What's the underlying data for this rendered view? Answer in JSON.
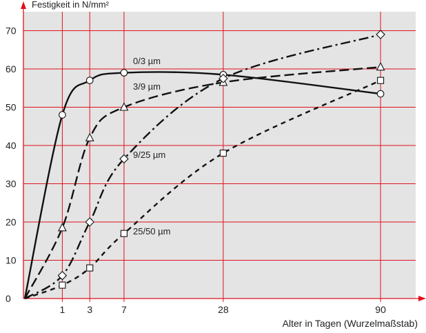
{
  "chart_data": {
    "type": "line",
    "title": "",
    "xlabel": "Alter in Tagen (Wurzelmaßstab)",
    "ylabel": "Festigkeit in N/mm²",
    "x_scale": "sqrt",
    "xlim": [
      0,
      100
    ],
    "ylim": [
      0,
      75
    ],
    "x_ticks": [
      1,
      3,
      7,
      28,
      90
    ],
    "y_ticks": [
      0,
      10,
      20,
      30,
      40,
      50,
      60,
      70
    ],
    "grid": true,
    "colors": {
      "grid": "#e0101a",
      "axis": "#e0101a",
      "background": "#e4e4e4",
      "curve": "#111111"
    },
    "series": [
      {
        "name": "0/3 µm",
        "marker": "circle",
        "line_style": "solid",
        "x": [
          0,
          1,
          3,
          7,
          28,
          90
        ],
        "y": [
          0,
          48,
          57,
          59,
          58.5,
          53.5
        ]
      },
      {
        "name": "3/9 µm",
        "marker": "triangle",
        "line_style": "dashed",
        "x": [
          0,
          1,
          3,
          7,
          28,
          90
        ],
        "y": [
          0,
          18.5,
          42,
          50,
          56.5,
          60.5
        ]
      },
      {
        "name": "9/25 µm",
        "marker": "diamond",
        "line_style": "dash-dot",
        "x": [
          0,
          1,
          3,
          7,
          28,
          90
        ],
        "y": [
          0,
          6,
          20,
          36.5,
          57.5,
          69
        ]
      },
      {
        "name": "25/50 µm",
        "marker": "square",
        "line_style": "short-dashed",
        "x": [
          0,
          1,
          3,
          7,
          28,
          90
        ],
        "y": [
          0,
          3.5,
          8,
          17,
          38,
          57
        ]
      }
    ]
  }
}
